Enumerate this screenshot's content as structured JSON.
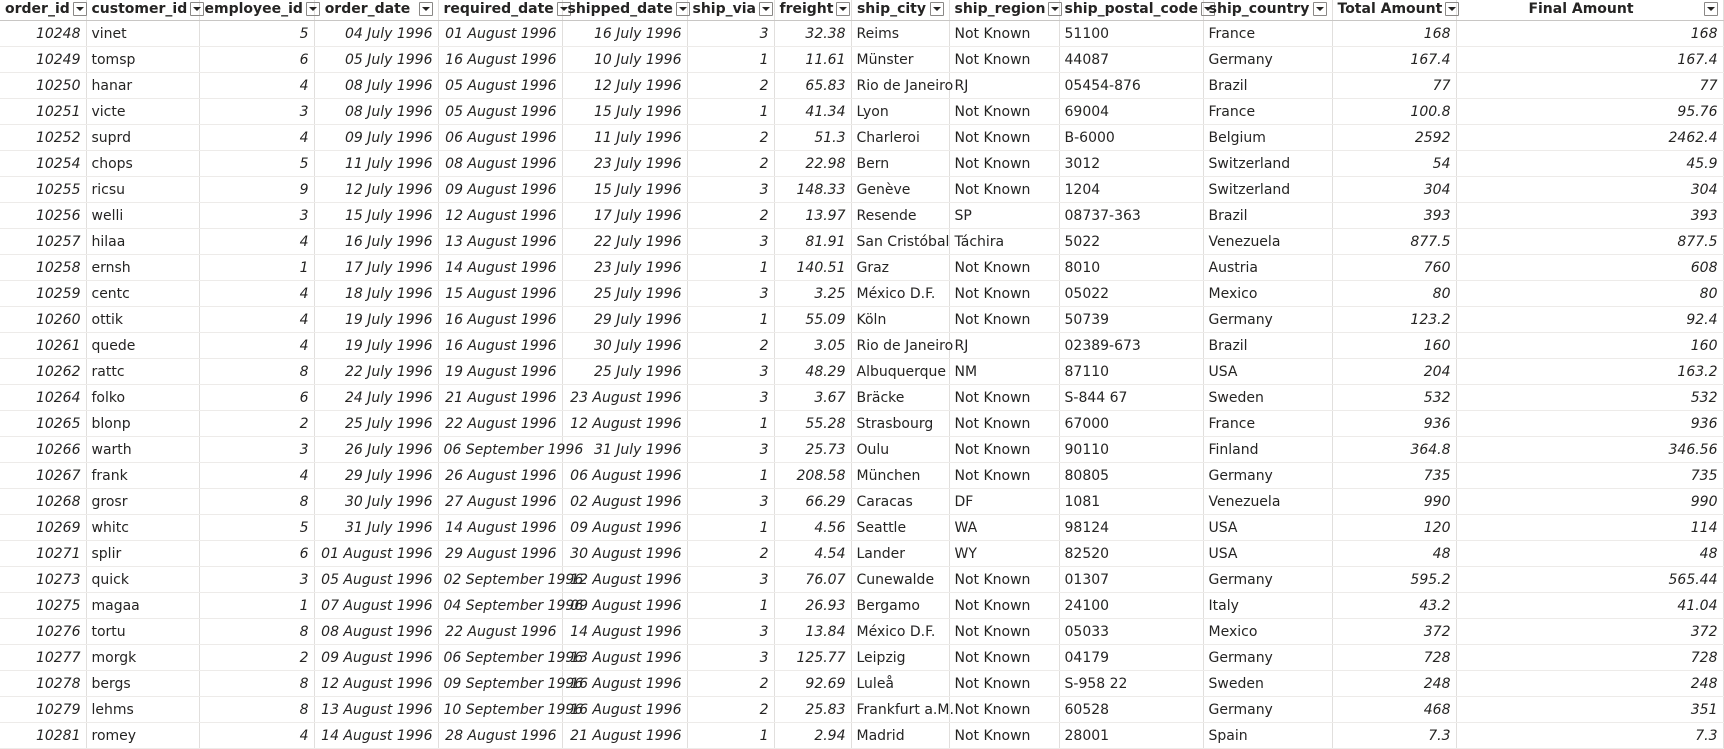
{
  "columns": [
    {
      "key": "order_id",
      "label": "order_id",
      "type": "num"
    },
    {
      "key": "customer_id",
      "label": "customer_id",
      "type": "txt"
    },
    {
      "key": "employee_id",
      "label": "employee_id",
      "type": "num"
    },
    {
      "key": "order_date",
      "label": "order_date",
      "type": "num"
    },
    {
      "key": "required_date",
      "label": "required_date",
      "type": "num"
    },
    {
      "key": "shipped_date",
      "label": "shipped_date",
      "type": "num"
    },
    {
      "key": "ship_via",
      "label": "ship_via",
      "type": "num"
    },
    {
      "key": "freight",
      "label": "freight",
      "type": "num"
    },
    {
      "key": "ship_city",
      "label": "ship_city",
      "type": "txt"
    },
    {
      "key": "ship_region",
      "label": "ship_region",
      "type": "txt"
    },
    {
      "key": "ship_postal_code",
      "label": "ship_postal_code",
      "type": "txt"
    },
    {
      "key": "ship_country",
      "label": "ship_country",
      "type": "txt"
    },
    {
      "key": "total_amount",
      "label": "Total Amount",
      "type": "num"
    },
    {
      "key": "final_amount",
      "label": "Final Amount",
      "type": "num"
    }
  ],
  "filter_icon": "chevron-down-icon",
  "rows": [
    [
      "10248",
      "vinet",
      "5",
      "04 July 1996",
      "01 August 1996",
      "16 July 1996",
      "3",
      "32.38",
      "Reims",
      "Not Known",
      "51100",
      "France",
      "168",
      "168"
    ],
    [
      "10249",
      "tomsp",
      "6",
      "05 July 1996",
      "16 August 1996",
      "10 July 1996",
      "1",
      "11.61",
      "Münster",
      "Not Known",
      "44087",
      "Germany",
      "167.4",
      "167.4"
    ],
    [
      "10250",
      "hanar",
      "4",
      "08 July 1996",
      "05 August 1996",
      "12 July 1996",
      "2",
      "65.83",
      "Rio de Janeiro",
      "RJ",
      "05454-876",
      "Brazil",
      "77",
      "77"
    ],
    [
      "10251",
      "victe",
      "3",
      "08 July 1996",
      "05 August 1996",
      "15 July 1996",
      "1",
      "41.34",
      "Lyon",
      "Not Known",
      "69004",
      "France",
      "100.8",
      "95.76"
    ],
    [
      "10252",
      "suprd",
      "4",
      "09 July 1996",
      "06 August 1996",
      "11 July 1996",
      "2",
      "51.3",
      "Charleroi",
      "Not Known",
      "B-6000",
      "Belgium",
      "2592",
      "2462.4"
    ],
    [
      "10254",
      "chops",
      "5",
      "11 July 1996",
      "08 August 1996",
      "23 July 1996",
      "2",
      "22.98",
      "Bern",
      "Not Known",
      "3012",
      "Switzerland",
      "54",
      "45.9"
    ],
    [
      "10255",
      "ricsu",
      "9",
      "12 July 1996",
      "09 August 1996",
      "15 July 1996",
      "3",
      "148.33",
      "Genève",
      "Not Known",
      "1204",
      "Switzerland",
      "304",
      "304"
    ],
    [
      "10256",
      "welli",
      "3",
      "15 July 1996",
      "12 August 1996",
      "17 July 1996",
      "2",
      "13.97",
      "Resende",
      "SP",
      "08737-363",
      "Brazil",
      "393",
      "393"
    ],
    [
      "10257",
      "hilaa",
      "4",
      "16 July 1996",
      "13 August 1996",
      "22 July 1996",
      "3",
      "81.91",
      "San Cristóbal",
      "Táchira",
      "5022",
      "Venezuela",
      "877.5",
      "877.5"
    ],
    [
      "10258",
      "ernsh",
      "1",
      "17 July 1996",
      "14 August 1996",
      "23 July 1996",
      "1",
      "140.51",
      "Graz",
      "Not Known",
      "8010",
      "Austria",
      "760",
      "608"
    ],
    [
      "10259",
      "centc",
      "4",
      "18 July 1996",
      "15 August 1996",
      "25 July 1996",
      "3",
      "3.25",
      "México D.F.",
      "Not Known",
      "05022",
      "Mexico",
      "80",
      "80"
    ],
    [
      "10260",
      "ottik",
      "4",
      "19 July 1996",
      "16 August 1996",
      "29 July 1996",
      "1",
      "55.09",
      "Köln",
      "Not Known",
      "50739",
      "Germany",
      "123.2",
      "92.4"
    ],
    [
      "10261",
      "quede",
      "4",
      "19 July 1996",
      "16 August 1996",
      "30 July 1996",
      "2",
      "3.05",
      "Rio de Janeiro",
      "RJ",
      "02389-673",
      "Brazil",
      "160",
      "160"
    ],
    [
      "10262",
      "rattc",
      "8",
      "22 July 1996",
      "19 August 1996",
      "25 July 1996",
      "3",
      "48.29",
      "Albuquerque",
      "NM",
      "87110",
      "USA",
      "204",
      "163.2"
    ],
    [
      "10264",
      "folko",
      "6",
      "24 July 1996",
      "21 August 1996",
      "23 August 1996",
      "3",
      "3.67",
      "Bräcke",
      "Not Known",
      "S-844 67",
      "Sweden",
      "532",
      "532"
    ],
    [
      "10265",
      "blonp",
      "2",
      "25 July 1996",
      "22 August 1996",
      "12 August 1996",
      "1",
      "55.28",
      "Strasbourg",
      "Not Known",
      "67000",
      "France",
      "936",
      "936"
    ],
    [
      "10266",
      "warth",
      "3",
      "26 July 1996",
      "06 September 1996",
      "31 July 1996",
      "3",
      "25.73",
      "Oulu",
      "Not Known",
      "90110",
      "Finland",
      "364.8",
      "346.56"
    ],
    [
      "10267",
      "frank",
      "4",
      "29 July 1996",
      "26 August 1996",
      "06 August 1996",
      "1",
      "208.58",
      "München",
      "Not Known",
      "80805",
      "Germany",
      "735",
      "735"
    ],
    [
      "10268",
      "grosr",
      "8",
      "30 July 1996",
      "27 August 1996",
      "02 August 1996",
      "3",
      "66.29",
      "Caracas",
      "DF",
      "1081",
      "Venezuela",
      "990",
      "990"
    ],
    [
      "10269",
      "whitc",
      "5",
      "31 July 1996",
      "14 August 1996",
      "09 August 1996",
      "1",
      "4.56",
      "Seattle",
      "WA",
      "98124",
      "USA",
      "120",
      "114"
    ],
    [
      "10271",
      "splir",
      "6",
      "01 August 1996",
      "29 August 1996",
      "30 August 1996",
      "2",
      "4.54",
      "Lander",
      "WY",
      "82520",
      "USA",
      "48",
      "48"
    ],
    [
      "10273",
      "quick",
      "3",
      "05 August 1996",
      "02 September 1996",
      "12 August 1996",
      "3",
      "76.07",
      "Cunewalde",
      "Not Known",
      "01307",
      "Germany",
      "595.2",
      "565.44"
    ],
    [
      "10275",
      "magaa",
      "1",
      "07 August 1996",
      "04 September 1996",
      "09 August 1996",
      "1",
      "26.93",
      "Bergamo",
      "Not Known",
      "24100",
      "Italy",
      "43.2",
      "41.04"
    ],
    [
      "10276",
      "tortu",
      "8",
      "08 August 1996",
      "22 August 1996",
      "14 August 1996",
      "3",
      "13.84",
      "México D.F.",
      "Not Known",
      "05033",
      "Mexico",
      "372",
      "372"
    ],
    [
      "10277",
      "morgk",
      "2",
      "09 August 1996",
      "06 September 1996",
      "13 August 1996",
      "3",
      "125.77",
      "Leipzig",
      "Not Known",
      "04179",
      "Germany",
      "728",
      "728"
    ],
    [
      "10278",
      "bergs",
      "8",
      "12 August 1996",
      "09 September 1996",
      "16 August 1996",
      "2",
      "92.69",
      "Luleå",
      "Not Known",
      "S-958 22",
      "Sweden",
      "248",
      "248"
    ],
    [
      "10279",
      "lehms",
      "8",
      "13 August 1996",
      "10 September 1996",
      "16 August 1996",
      "2",
      "25.83",
      "Frankfurt a.M.",
      "Not Known",
      "60528",
      "Germany",
      "468",
      "351"
    ],
    [
      "10281",
      "romey",
      "4",
      "14 August 1996",
      "28 August 1996",
      "21 August 1996",
      "1",
      "2.94",
      "Madrid",
      "Not Known",
      "28001",
      "Spain",
      "7.3",
      "7.3"
    ]
  ]
}
